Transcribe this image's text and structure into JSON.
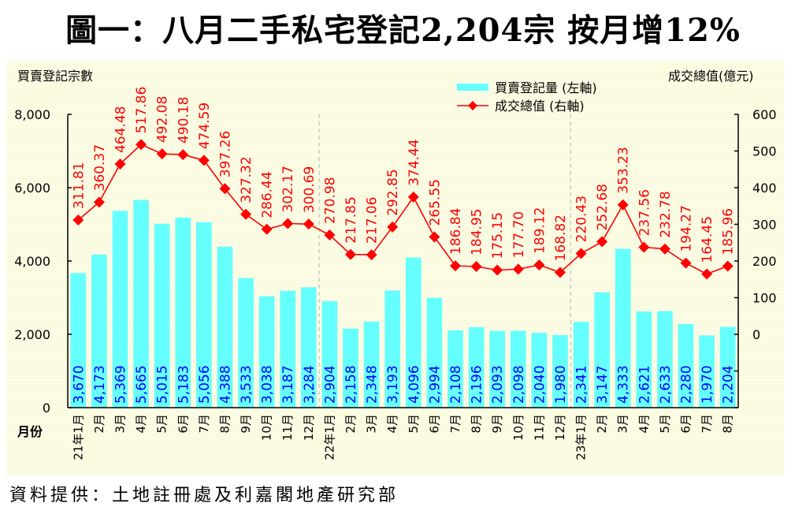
{
  "title": "圖一：八月二手私宅登記2,204宗  按月增12%",
  "source": "資料提供：土地註冊處及利嘉閣地產研究部",
  "colors": {
    "bar": "#66ffff",
    "bar_label": "#0000ff",
    "line": "#ff0000",
    "axis": "#000000",
    "divider": "#c0c0c0"
  },
  "chart_data": {
    "type": "bar+line",
    "title": "圖一：八月二手私宅登記2,204宗  按月增12%",
    "xlabel": "月份",
    "ylabel_left": "買賣登記宗數",
    "ylabel_right": "成交總值(億元)",
    "ylim_left": [
      0,
      8000
    ],
    "yticks_left": [
      "0",
      "2,000",
      "4,000",
      "6,000",
      "8,000"
    ],
    "ylim_right": [
      -200,
      600
    ],
    "yticks_right": [
      "0",
      "100",
      "200",
      "300",
      "400",
      "500",
      "600"
    ],
    "legend_position": "top-center",
    "categories": [
      "21年1月",
      "2月",
      "3月",
      "4月",
      "5月",
      "6月",
      "7月",
      "8月",
      "9月",
      "10月",
      "11月",
      "12月",
      "22年1月",
      "2月",
      "3月",
      "4月",
      "5月",
      "6月",
      "7月",
      "8月",
      "9月",
      "10月",
      "11月",
      "12月",
      "23年1月",
      "2月",
      "3月",
      "4月",
      "5月",
      "6月",
      "7月",
      "8月"
    ],
    "year_dividers_after_index": [
      11,
      23
    ],
    "series": [
      {
        "name": "買賣登記量 (左軸)",
        "type": "bar",
        "axis": "left",
        "values": [
          3670,
          4173,
          5369,
          5665,
          5015,
          5183,
          5056,
          4388,
          3533,
          3038,
          3187,
          3284,
          2904,
          2158,
          2348,
          3193,
          4096,
          2994,
          2108,
          2196,
          2093,
          2098,
          2040,
          1980,
          2341,
          3147,
          4333,
          2621,
          2633,
          2280,
          1970,
          2204
        ],
        "labels": [
          "3,670",
          "4,173",
          "5,369",
          "5,665",
          "5,015",
          "5,183",
          "5,056",
          "4,388",
          "3,533",
          "3,038",
          "3,187",
          "3,284",
          "2,904",
          "2,158",
          "2,348",
          "3,193",
          "4,096",
          "2,994",
          "2,108",
          "2,196",
          "2,093",
          "2,098",
          "2,040",
          "1,980",
          "2,341",
          "3,147",
          "4,333",
          "2,621",
          "2,633",
          "2,280",
          "1,970",
          "2,204"
        ]
      },
      {
        "name": "成交總值 (右軸)",
        "type": "line",
        "axis": "right",
        "values": [
          311.81,
          360.37,
          464.48,
          517.86,
          492.08,
          490.18,
          474.59,
          397.26,
          327.32,
          286.44,
          302.17,
          300.69,
          270.98,
          217.85,
          217.06,
          292.85,
          374.44,
          265.55,
          186.84,
          184.95,
          175.15,
          177.7,
          189.12,
          168.82,
          220.43,
          252.68,
          353.23,
          237.56,
          232.78,
          194.27,
          164.45,
          185.96
        ],
        "labels": [
          "311.81",
          "360.37",
          "464.48",
          "517.86",
          "492.08",
          "490.18",
          "474.59",
          "397.26",
          "327.32",
          "286.44",
          "302.17",
          "300.69",
          "270.98",
          "217.85",
          "217.06",
          "292.85",
          "374.44",
          "265.55",
          "186.84",
          "184.95",
          "175.15",
          "177.70",
          "189.12",
          "168.82",
          "220.43",
          "252.68",
          "353.23",
          "237.56",
          "232.78",
          "194.27",
          "164.45",
          "185.96"
        ]
      }
    ]
  }
}
